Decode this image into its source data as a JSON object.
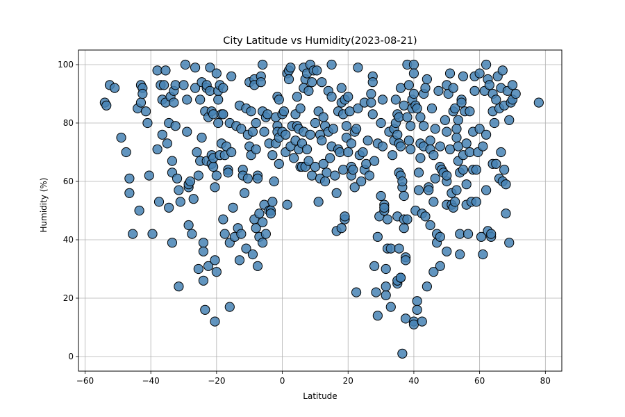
{
  "chart_data": {
    "type": "scatter",
    "title": "City Latitude vs Humidity(2023-08-21)",
    "xlabel": "Latitude",
    "ylabel": "Humidity (%)",
    "xlim": [
      -62,
      85
    ],
    "ylim": [
      -5,
      105
    ],
    "xticks": [
      -60,
      -40,
      -20,
      0,
      20,
      40,
      60,
      80
    ],
    "yticks": [
      0,
      20,
      40,
      60,
      80,
      100
    ],
    "grid": true,
    "marker_color": "#4682B4",
    "marker_edge": "#000000",
    "points": [
      [
        -54,
        87
      ],
      [
        -53.5,
        86
      ],
      [
        -52.5,
        93
      ],
      [
        -51,
        92
      ],
      [
        -49,
        75
      ],
      [
        -47.5,
        70
      ],
      [
        -46.5,
        61
      ],
      [
        -46.5,
        56
      ],
      [
        -45.5,
        42
      ],
      [
        -44,
        85
      ],
      [
        -43.5,
        50
      ],
      [
        -43,
        87
      ],
      [
        -43,
        93
      ],
      [
        -42.5,
        92
      ],
      [
        -42.5,
        90
      ],
      [
        -41.5,
        84
      ],
      [
        -41,
        80
      ],
      [
        -40.5,
        62
      ],
      [
        -39.5,
        42
      ],
      [
        -38,
        98
      ],
      [
        -38,
        71
      ],
      [
        -37.5,
        53
      ],
      [
        -37,
        93
      ],
      [
        -36.5,
        76
      ],
      [
        -36.5,
        88
      ],
      [
        -36,
        93
      ],
      [
        -35.5,
        98
      ],
      [
        -35.5,
        87
      ],
      [
        -35,
        73
      ],
      [
        -34.5,
        51
      ],
      [
        -34.5,
        80
      ],
      [
        -34,
        89
      ],
      [
        -33.5,
        63
      ],
      [
        -33.5,
        67
      ],
      [
        -33.5,
        39
      ],
      [
        -33,
        91
      ],
      [
        -33,
        87
      ],
      [
        -32.5,
        93
      ],
      [
        -32.5,
        79
      ],
      [
        -32,
        61
      ],
      [
        -31.5,
        24
      ],
      [
        -31.5,
        57
      ],
      [
        -31,
        53
      ],
      [
        -30,
        93
      ],
      [
        -29.5,
        100
      ],
      [
        -29,
        88
      ],
      [
        -29,
        77
      ],
      [
        -28.5,
        58
      ],
      [
        -28.5,
        59
      ],
      [
        -28.5,
        45
      ],
      [
        -28,
        60
      ],
      [
        -27.5,
        42
      ],
      [
        -27,
        54
      ],
      [
        -26.5,
        99
      ],
      [
        -26.5,
        92
      ],
      [
        -26,
        70
      ],
      [
        -25.5,
        30
      ],
      [
        -25.5,
        62
      ],
      [
        -25,
        67
      ],
      [
        -25,
        88
      ],
      [
        -24.5,
        94
      ],
      [
        -24.5,
        75
      ],
      [
        -24,
        39
      ],
      [
        -24,
        36
      ],
      [
        -24,
        26
      ],
      [
        -23.5,
        16
      ],
      [
        -23.5,
        84
      ],
      [
        -23,
        92
      ],
      [
        -23,
        93
      ],
      [
        -23,
        67
      ],
      [
        -22.5,
        82
      ],
      [
        -22.5,
        31
      ],
      [
        -22,
        99
      ],
      [
        -22,
        91
      ],
      [
        -21.5,
        84
      ],
      [
        -21.5,
        69
      ],
      [
        -21.5,
        66
      ],
      [
        -21,
        65
      ],
      [
        -21,
        68
      ],
      [
        -21,
        83
      ],
      [
        -20.5,
        33
      ],
      [
        -20.5,
        12
      ],
      [
        -20.5,
        58
      ],
      [
        -20,
        97
      ],
      [
        -20,
        29
      ],
      [
        -20,
        62
      ],
      [
        -19.5,
        88
      ],
      [
        -19.5,
        80
      ],
      [
        -19.5,
        91
      ],
      [
        -19,
        93
      ],
      [
        -19,
        69
      ],
      [
        -18.5,
        73
      ],
      [
        -18.5,
        83
      ],
      [
        -18,
        92
      ],
      [
        -18,
        47
      ],
      [
        -18,
        83
      ],
      [
        -17.5,
        69
      ],
      [
        -17.5,
        42
      ],
      [
        -17,
        72
      ],
      [
        -16.5,
        64
      ],
      [
        -16.5,
        63
      ],
      [
        -16,
        80
      ],
      [
        -16,
        17
      ],
      [
        -16,
        39
      ],
      [
        -15.5,
        96
      ],
      [
        -15.5,
        70
      ],
      [
        -15,
        51
      ],
      [
        -14.5,
        41
      ],
      [
        -14,
        79
      ],
      [
        -13.5,
        44
      ],
      [
        -13,
        33
      ],
      [
        -13,
        86
      ],
      [
        -12.5,
        78
      ],
      [
        -12.5,
        42
      ],
      [
        -12,
        64
      ],
      [
        -12,
        62
      ],
      [
        -11.5,
        56
      ],
      [
        -11,
        85
      ],
      [
        -11,
        37
      ],
      [
        -10.5,
        76
      ],
      [
        -10.5,
        61
      ],
      [
        -10,
        94
      ],
      [
        -10,
        72
      ],
      [
        -9.5,
        84
      ],
      [
        -9.5,
        69
      ],
      [
        -9,
        35
      ],
      [
        -9,
        77
      ],
      [
        -8.5,
        95
      ],
      [
        -8.5,
        93
      ],
      [
        -8.5,
        47
      ],
      [
        -8,
        44
      ],
      [
        -8,
        71
      ],
      [
        -8,
        80
      ],
      [
        -7.5,
        31
      ],
      [
        -7.5,
        62
      ],
      [
        -7.5,
        61
      ],
      [
        -7,
        49
      ],
      [
        -7,
        41
      ],
      [
        -6.5,
        96
      ],
      [
        -6.5,
        94
      ],
      [
        -6,
        100
      ],
      [
        -6,
        84
      ],
      [
        -6,
        46
      ],
      [
        -6,
        39
      ],
      [
        -5.5,
        77
      ],
      [
        -5.5,
        52
      ],
      [
        -5,
        82
      ],
      [
        -5,
        42
      ],
      [
        -4.5,
        83
      ],
      [
        -4,
        73
      ],
      [
        -4,
        50
      ],
      [
        -3.5,
        50
      ],
      [
        -3.5,
        49
      ],
      [
        -3,
        69
      ],
      [
        -3,
        53
      ],
      [
        -2.5,
        60
      ],
      [
        -2,
        82
      ],
      [
        -2,
        73
      ],
      [
        -1.5,
        79
      ],
      [
        -1.5,
        77
      ],
      [
        -1.5,
        89
      ],
      [
        -1,
        66
      ],
      [
        -1,
        88
      ],
      [
        -1,
        75
      ],
      [
        0,
        77
      ],
      [
        0,
        83
      ],
      [
        0.5,
        84
      ],
      [
        1,
        76
      ],
      [
        1,
        70
      ],
      [
        1.5,
        52
      ],
      [
        1.5,
        97
      ],
      [
        2,
        98
      ],
      [
        2,
        95
      ],
      [
        2.5,
        99
      ],
      [
        2.5,
        72
      ],
      [
        3,
        79
      ],
      [
        3.5,
        68
      ],
      [
        4,
        83
      ],
      [
        4,
        74
      ],
      [
        4.5,
        89
      ],
      [
        4.5,
        79
      ],
      [
        5,
        78
      ],
      [
        5,
        71
      ],
      [
        5.5,
        65
      ],
      [
        5.5,
        85
      ],
      [
        6,
        73
      ],
      [
        6,
        65
      ],
      [
        6.5,
        99
      ],
      [
        6.5,
        92
      ],
      [
        6.5,
        77
      ],
      [
        7,
        95
      ],
      [
        7,
        65
      ],
      [
        7.5,
        71
      ],
      [
        7.5,
        97
      ],
      [
        8,
        91
      ],
      [
        8,
        67
      ],
      [
        8.5,
        100
      ],
      [
        8.5,
        76
      ],
      [
        9,
        62
      ],
      [
        9,
        94
      ],
      [
        9.5,
        98
      ],
      [
        10,
        80
      ],
      [
        10,
        65
      ],
      [
        10.5,
        98
      ],
      [
        11,
        84
      ],
      [
        11,
        53
      ],
      [
        11.5,
        76
      ],
      [
        11.5,
        61
      ],
      [
        12,
        94
      ],
      [
        12,
        74
      ],
      [
        12.5,
        82
      ],
      [
        12.5,
        66
      ],
      [
        13,
        60
      ],
      [
        13,
        79
      ],
      [
        13.5,
        63
      ],
      [
        14,
        77
      ],
      [
        14,
        91
      ],
      [
        14.5,
        68
      ],
      [
        15,
        89
      ],
      [
        15,
        72
      ],
      [
        15,
        100
      ],
      [
        15.5,
        78
      ],
      [
        16,
        62
      ],
      [
        16.5,
        56
      ],
      [
        16.5,
        43
      ],
      [
        17,
        84
      ],
      [
        17,
        71
      ],
      [
        17.5,
        70
      ],
      [
        18,
        92
      ],
      [
        18,
        87
      ],
      [
        18,
        44
      ],
      [
        18.5,
        83
      ],
      [
        18.5,
        64
      ],
      [
        19,
        88
      ],
      [
        19,
        47
      ],
      [
        19,
        48
      ],
      [
        19.5,
        75
      ],
      [
        19.5,
        79
      ],
      [
        20,
        89
      ],
      [
        20,
        70
      ],
      [
        20.5,
        84
      ],
      [
        21,
        65
      ],
      [
        21,
        62
      ],
      [
        21,
        73
      ],
      [
        21.5,
        64
      ],
      [
        22,
        58
      ],
      [
        22,
        77
      ],
      [
        22.5,
        78
      ],
      [
        22.5,
        22
      ],
      [
        23,
        99
      ],
      [
        23,
        85
      ],
      [
        23.5,
        69
      ],
      [
        24,
        60
      ],
      [
        24.5,
        70
      ],
      [
        25,
        64
      ],
      [
        25,
        87
      ],
      [
        25.5,
        66
      ],
      [
        26,
        74
      ],
      [
        26.5,
        62
      ],
      [
        27,
        90
      ],
      [
        27,
        87
      ],
      [
        27.5,
        96
      ],
      [
        27.5,
        94
      ],
      [
        27.5,
        83
      ],
      [
        28,
        31
      ],
      [
        28,
        67
      ],
      [
        28.5,
        22
      ],
      [
        29,
        73
      ],
      [
        29,
        41
      ],
      [
        29,
        14
      ],
      [
        29.5,
        48
      ],
      [
        30,
        80
      ],
      [
        30,
        55
      ],
      [
        30.5,
        72
      ],
      [
        30.5,
        88
      ],
      [
        31,
        50
      ],
      [
        31,
        52
      ],
      [
        31,
        51
      ],
      [
        31.5,
        21
      ],
      [
        31.5,
        24
      ],
      [
        31.5,
        30
      ],
      [
        32,
        47
      ],
      [
        32,
        37
      ],
      [
        32.5,
        77
      ],
      [
        33,
        37
      ],
      [
        33,
        17
      ],
      [
        33.5,
        69
      ],
      [
        34,
        78
      ],
      [
        34,
        74
      ],
      [
        34.5,
        80
      ],
      [
        34.5,
        88
      ],
      [
        35,
        76
      ],
      [
        35,
        83
      ],
      [
        35,
        25
      ],
      [
        35,
        26
      ],
      [
        35,
        48
      ],
      [
        35.5,
        37
      ],
      [
        35.5,
        73
      ],
      [
        35.5,
        82
      ],
      [
        35.5,
        63
      ],
      [
        36,
        92
      ],
      [
        36,
        27
      ],
      [
        36,
        27
      ],
      [
        36,
        62
      ],
      [
        36,
        72
      ],
      [
        36.5,
        1
      ],
      [
        36.5,
        58
      ],
      [
        36.5,
        60
      ],
      [
        37,
        86
      ],
      [
        37,
        55
      ],
      [
        37,
        44
      ],
      [
        37,
        47
      ],
      [
        37.5,
        13
      ],
      [
        37.5,
        34
      ],
      [
        37.5,
        33
      ],
      [
        38,
        100
      ],
      [
        38,
        82
      ],
      [
        38,
        47
      ],
      [
        38.5,
        93
      ],
      [
        38.5,
        74
      ],
      [
        39,
        71
      ],
      [
        39,
        79
      ],
      [
        39.5,
        85
      ],
      [
        39.5,
        88
      ],
      [
        40,
        100
      ],
      [
        40,
        97
      ],
      [
        40,
        12
      ],
      [
        40,
        11
      ],
      [
        40,
        90
      ],
      [
        40.5,
        50
      ],
      [
        40.5,
        86
      ],
      [
        41,
        19
      ],
      [
        41,
        16
      ],
      [
        41,
        85
      ],
      [
        41.5,
        63
      ],
      [
        41.5,
        57
      ],
      [
        42,
        82
      ],
      [
        42,
        73
      ],
      [
        42,
        68
      ],
      [
        42.5,
        49
      ],
      [
        42.5,
        12
      ],
      [
        43,
        79
      ],
      [
        43,
        90
      ],
      [
        43,
        72
      ],
      [
        43.5,
        92
      ],
      [
        43.5,
        48
      ],
      [
        44,
        24
      ],
      [
        44,
        95
      ],
      [
        44.5,
        58
      ],
      [
        44.5,
        57
      ],
      [
        45,
        74
      ],
      [
        45,
        45
      ],
      [
        45,
        71
      ],
      [
        45.5,
        85
      ],
      [
        46,
        53
      ],
      [
        46,
        29
      ],
      [
        46,
        69
      ],
      [
        46.5,
        61
      ],
      [
        46.5,
        78
      ],
      [
        47,
        39
      ],
      [
        47,
        42
      ],
      [
        47.5,
        91
      ],
      [
        48,
        65
      ],
      [
        48,
        31
      ],
      [
        48,
        41
      ],
      [
        48,
        72
      ],
      [
        48.5,
        64
      ],
      [
        49,
        63
      ],
      [
        49.5,
        81
      ],
      [
        50,
        77
      ],
      [
        50,
        93
      ],
      [
        50,
        60
      ],
      [
        50,
        62
      ],
      [
        50,
        36
      ],
      [
        50,
        52
      ],
      [
        50.5,
        90
      ],
      [
        51,
        97
      ],
      [
        51,
        71
      ],
      [
        51.5,
        56
      ],
      [
        51.5,
        52
      ],
      [
        52,
        51
      ],
      [
        52,
        84
      ],
      [
        52,
        92
      ],
      [
        52.5,
        85
      ],
      [
        52.5,
        53
      ],
      [
        53,
        78
      ],
      [
        53,
        57
      ],
      [
        53,
        75
      ],
      [
        53.5,
        67
      ],
      [
        53.5,
        72
      ],
      [
        53.5,
        81
      ],
      [
        54,
        63
      ],
      [
        54,
        35
      ],
      [
        54,
        42
      ],
      [
        54.5,
        88
      ],
      [
        54.5,
        87
      ],
      [
        55,
        64
      ],
      [
        55,
        69
      ],
      [
        55,
        96
      ],
      [
        55.5,
        84
      ],
      [
        56,
        59
      ],
      [
        56,
        73
      ],
      [
        56,
        52
      ],
      [
        56.5,
        42
      ],
      [
        57,
        70
      ],
      [
        57,
        84
      ],
      [
        57.5,
        53
      ],
      [
        58,
        77
      ],
      [
        58,
        64
      ],
      [
        58.5,
        91
      ],
      [
        58.5,
        96
      ],
      [
        59,
        64
      ],
      [
        59,
        53
      ],
      [
        59.5,
        70
      ],
      [
        60,
        78
      ],
      [
        60,
        97
      ],
      [
        60.5,
        41
      ],
      [
        61,
        35
      ],
      [
        61,
        72
      ],
      [
        61.5,
        91
      ],
      [
        62,
        100
      ],
      [
        62,
        57
      ],
      [
        62,
        76
      ],
      [
        62.5,
        43
      ],
      [
        62.5,
        95
      ],
      [
        63,
        93
      ],
      [
        63.5,
        41
      ],
      [
        63.5,
        42
      ],
      [
        64,
        84
      ],
      [
        64,
        66
      ],
      [
        64,
        90
      ],
      [
        64.5,
        80
      ],
      [
        65,
        88
      ],
      [
        65,
        66
      ],
      [
        65.5,
        96
      ],
      [
        66,
        85
      ],
      [
        66,
        61
      ],
      [
        66.5,
        92
      ],
      [
        66.5,
        70
      ],
      [
        67,
        60
      ],
      [
        67,
        98
      ],
      [
        67.5,
        86
      ],
      [
        67.5,
        64
      ],
      [
        68,
        59
      ],
      [
        68,
        49
      ],
      [
        68.5,
        91
      ],
      [
        69,
        39
      ],
      [
        69,
        81
      ],
      [
        69.5,
        87
      ],
      [
        70,
        88
      ],
      [
        70,
        93
      ],
      [
        71,
        90
      ],
      [
        78,
        87
      ]
    ]
  }
}
